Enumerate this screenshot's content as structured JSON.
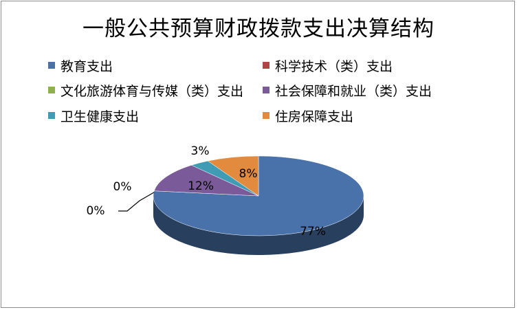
{
  "chart_data": {
    "type": "pie",
    "style": "3d",
    "title": "一般公共预算财政拨款支出决算结构",
    "legend_position": "top",
    "categories": [
      "教育支出",
      "科学技术（类）支出",
      "文化旅游体育与传媒（类）支出",
      "社会保障和就业（类）支出",
      "卫生健康支出",
      "住房保障支出"
    ],
    "values": [
      77,
      0,
      0,
      12,
      3,
      8
    ],
    "labels": [
      "77%",
      "0%",
      "0%",
      "12%",
      "3%",
      "8%"
    ],
    "colors": [
      "#4a72aa",
      "#b04643",
      "#8fb04f",
      "#7a5a98",
      "#3f9cb4",
      "#e28a3d"
    ]
  }
}
